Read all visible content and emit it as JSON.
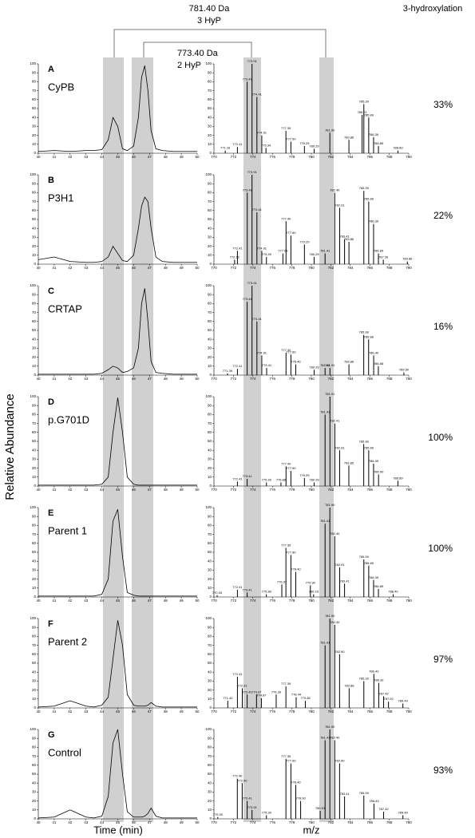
{
  "figure": {
    "title_right": "3-hydroxylation",
    "ylabel": "Relative Abundance",
    "xlabel_time": "Time (min)",
    "xlabel_mz": "m/z",
    "brackets": [
      {
        "mass": "781.40 Da",
        "label": "3 HyP"
      },
      {
        "mass": "773.40 Da",
        "label": "2 HyP"
      }
    ]
  },
  "panels": [
    {
      "letter": "A",
      "name": "CyPB",
      "percent": "33%"
    },
    {
      "letter": "B",
      "name": "P3H1",
      "percent": "22%"
    },
    {
      "letter": "C",
      "name": "CRTAP",
      "percent": "16%"
    },
    {
      "letter": "D",
      "name": "p.G701D",
      "percent": "100%"
    },
    {
      "letter": "E",
      "name": "Parent 1",
      "percent": "100%"
    },
    {
      "letter": "F",
      "name": "Parent 2",
      "percent": "97%"
    },
    {
      "letter": "G",
      "name": "Control",
      "percent": "93%"
    }
  ],
  "chart_data": [
    {
      "type": "line",
      "xlim": [
        40,
        50
      ],
      "xticks": [
        40,
        41,
        42,
        43,
        44,
        45,
        46,
        47,
        48,
        49,
        50
      ],
      "ylim": [
        0,
        100
      ],
      "yticks": [
        0,
        10,
        20,
        30,
        40,
        50,
        60,
        70,
        80,
        90,
        100
      ],
      "x": [
        40,
        41,
        42,
        43,
        43.5,
        44,
        44.4,
        44.7,
        45,
        45.3,
        45.6,
        46,
        46.3,
        46.5,
        46.7,
        46.9,
        47.1,
        47.4,
        47.8,
        48.5,
        49.5,
        50
      ],
      "values": [
        2,
        3,
        2,
        3,
        3,
        4,
        15,
        40,
        30,
        5,
        3,
        8,
        40,
        85,
        98,
        70,
        25,
        5,
        3,
        2,
        2,
        2
      ]
    },
    {
      "type": "stick",
      "xlim": [
        770,
        790
      ],
      "xticks": [
        770,
        772,
        774,
        776,
        778,
        780,
        782,
        784,
        786,
        788,
        790
      ],
      "ylim": [
        0,
        100
      ],
      "yticks": [
        0,
        10,
        20,
        30,
        40,
        50,
        60,
        70,
        80,
        90,
        100
      ],
      "x": [
        771.16,
        772.41,
        773.41,
        773.91,
        774.41,
        774.91,
        775.34,
        777.39,
        777.9,
        779.29,
        780.29,
        781.9,
        783.86,
        785.21,
        785.39,
        785.89,
        786.39,
        786.89,
        788.89
      ],
      "x_labels": [
        "771.16",
        "772.41",
        "773.41",
        "773.91",
        "774.41",
        "774.91",
        "775.34",
        "777.39",
        "777.90",
        "779.29",
        "780.29",
        "781.90",
        "783.86",
        "785.21",
        "785.39",
        "785.89",
        "786.39",
        "786.89",
        "788.89"
      ],
      "values": [
        3,
        7,
        80,
        100,
        63,
        20,
        6,
        25,
        13,
        8,
        5,
        23,
        15,
        43,
        55,
        40,
        18,
        8,
        3
      ]
    },
    {
      "type": "line",
      "xlim": [
        40,
        50
      ],
      "xticks": [
        40,
        41,
        42,
        43,
        44,
        45,
        46,
        47,
        48,
        49,
        50
      ],
      "ylim": [
        0,
        100
      ],
      "yticks": [
        0,
        10,
        20,
        30,
        40,
        50,
        60,
        70,
        80,
        90,
        100
      ],
      "x": [
        40,
        41,
        42,
        43,
        43.5,
        44,
        44.4,
        44.7,
        45,
        45.3,
        45.6,
        46,
        46.3,
        46.5,
        46.7,
        46.9,
        47.1,
        47.4,
        47.8,
        48.5,
        49.5,
        50
      ],
      "values": [
        5,
        8,
        3,
        2,
        2,
        3,
        8,
        20,
        12,
        4,
        3,
        10,
        40,
        65,
        75,
        70,
        40,
        8,
        3,
        2,
        2,
        2
      ]
    },
    {
      "type": "stick",
      "xlim": [
        770,
        790
      ],
      "xticks": [
        770,
        772,
        774,
        776,
        778,
        780,
        782,
        784,
        786,
        788,
        790
      ],
      "ylim": [
        0,
        100
      ],
      "yticks": [
        0,
        10,
        20,
        30,
        40,
        50,
        60,
        70,
        80,
        90,
        100
      ],
      "x": [
        772.12,
        772.41,
        773.42,
        773.91,
        774.41,
        774.91,
        775.39,
        777.08,
        777.4,
        777.9,
        779.29,
        780.29,
        781.41,
        782.4,
        782.91,
        783.41,
        783.86,
        785.39,
        785.89,
        786.39,
        786.89,
        787.39,
        789.86
      ],
      "x_labels": [
        "772.12",
        "772.41",
        "773.42",
        "773.91",
        "774.41",
        "774.91",
        "775.39",
        "777.08",
        "777.40",
        "777.90",
        "779.29",
        "780.29",
        "781.41",
        "782.40",
        "782.91",
        "783.41",
        "783.86",
        "785.39",
        "785.89",
        "786.39",
        "786.89",
        "787.39",
        "789.86"
      ],
      "values": [
        5,
        15,
        80,
        100,
        58,
        15,
        8,
        12,
        48,
        32,
        22,
        8,
        12,
        80,
        63,
        28,
        25,
        82,
        70,
        45,
        12,
        5,
        3
      ]
    },
    {
      "type": "line",
      "xlim": [
        40,
        50
      ],
      "xticks": [
        40,
        41,
        42,
        43,
        44,
        45,
        46,
        47,
        48,
        49,
        50
      ],
      "ylim": [
        0,
        100
      ],
      "yticks": [
        0,
        10,
        20,
        30,
        40,
        50,
        60,
        70,
        80,
        90,
        100
      ],
      "x": [
        40,
        41,
        42,
        43,
        43.5,
        44,
        44.4,
        44.7,
        45,
        45.3,
        45.6,
        46,
        46.3,
        46.5,
        46.7,
        46.9,
        47.1,
        47.4,
        47.8,
        48.5,
        49.5,
        50
      ],
      "values": [
        1,
        1,
        1,
        1,
        1,
        2,
        6,
        10,
        8,
        3,
        4,
        8,
        30,
        80,
        97,
        60,
        15,
        3,
        2,
        1,
        1,
        1
      ]
    },
    {
      "type": "stick",
      "xlim": [
        770,
        790
      ],
      "xticks": [
        770,
        772,
        774,
        776,
        778,
        780,
        782,
        784,
        786,
        788,
        790
      ],
      "ylim": [
        0,
        100
      ],
      "yticks": [
        0,
        10,
        20,
        30,
        40,
        50,
        60,
        70,
        80,
        90,
        100
      ],
      "x": [
        771.39,
        772.41,
        773.41,
        773.91,
        774.41,
        774.91,
        775.41,
        777.4,
        777.9,
        778.4,
        780.29,
        781.41,
        781.91,
        783.86,
        785.38,
        785.88,
        786.4,
        786.88,
        789.5
      ],
      "x_labels": [
        "771.39",
        "772.41",
        "773.41",
        "773.91",
        "774.41",
        "774.91",
        "775.41",
        "777.40",
        "777.90",
        "778.40",
        "780.29",
        "781.41",
        "781.91",
        "783.86",
        "785.38",
        "785.88",
        "786.40",
        "786.88",
        "789.50"
      ],
      "values": [
        2,
        7,
        82,
        100,
        60,
        22,
        8,
        25,
        23,
        12,
        6,
        8,
        8,
        12,
        45,
        40,
        22,
        10,
        3
      ]
    },
    {
      "type": "line",
      "xlim": [
        40,
        50
      ],
      "xticks": [
        40,
        41,
        42,
        43,
        44,
        45,
        46,
        47,
        48,
        49,
        50
      ],
      "ylim": [
        0,
        100
      ],
      "yticks": [
        0,
        10,
        20,
        30,
        40,
        50,
        60,
        70,
        80,
        90,
        100
      ],
      "x": [
        40,
        41,
        42,
        43,
        43.5,
        44,
        44.4,
        44.7,
        45,
        45.3,
        45.6,
        46,
        46.3,
        46.5,
        46.7,
        46.9,
        47.1,
        47.4,
        47.8,
        48.5,
        49.5,
        50
      ],
      "values": [
        1,
        1,
        1,
        1,
        1,
        2,
        10,
        60,
        99,
        60,
        10,
        2,
        1,
        1,
        1,
        1,
        1,
        1,
        1,
        1,
        1,
        1
      ]
    },
    {
      "type": "stick",
      "xlim": [
        770,
        790
      ],
      "xticks": [
        770,
        772,
        774,
        776,
        778,
        780,
        782,
        784,
        786,
        788,
        790
      ],
      "ylim": [
        0,
        100
      ],
      "yticks": [
        0,
        10,
        20,
        30,
        40,
        50,
        60,
        70,
        80,
        90,
        100
      ],
      "x": [
        772.41,
        773.41,
        775.39,
        776.88,
        777.4,
        777.9,
        779.29,
        780.29,
        781.41,
        781.91,
        782.41,
        782.91,
        783.85,
        785.38,
        785.89,
        786.39,
        786.9,
        788.89
      ],
      "x_labels": [
        "772.41",
        "773.41",
        "775.39",
        "776.88",
        "777.40",
        "777.90",
        "779.29",
        "780.29",
        "781.41",
        "781.91",
        "782.41",
        "782.91",
        "783.85",
        "785.38",
        "785.89",
        "786.39",
        "786.90",
        "788.89"
      ],
      "values": [
        5,
        8,
        4,
        4,
        22,
        17,
        9,
        4,
        80,
        100,
        70,
        40,
        23,
        47,
        40,
        25,
        13,
        6
      ]
    },
    {
      "type": "line",
      "xlim": [
        40,
        50
      ],
      "xticks": [
        40,
        41,
        42,
        43,
        44,
        45,
        46,
        47,
        48,
        49,
        50
      ],
      "ylim": [
        0,
        100
      ],
      "yticks": [
        0,
        10,
        20,
        30,
        40,
        50,
        60,
        70,
        80,
        90,
        100
      ],
      "x": [
        40,
        41,
        42,
        43,
        43.5,
        44,
        44.4,
        44.7,
        45,
        45.3,
        45.6,
        46,
        46.3,
        46.5,
        46.7,
        46.9,
        47.1,
        47.4,
        47.8,
        48.5,
        49.5,
        50
      ],
      "values": [
        1,
        1,
        1,
        1,
        1,
        3,
        20,
        85,
        98,
        45,
        5,
        2,
        1,
        1,
        1,
        1,
        1,
        1,
        1,
        1,
        1,
        1
      ]
    },
    {
      "type": "stick",
      "xlim": [
        770,
        790
      ],
      "xticks": [
        770,
        772,
        774,
        776,
        778,
        780,
        782,
        784,
        786,
        788,
        790
      ],
      "ylim": [
        0,
        100
      ],
      "yticks": [
        0,
        10,
        20,
        30,
        40,
        50,
        60,
        70,
        80,
        90,
        100
      ],
      "x": [
        770.33,
        772.41,
        773.41,
        775.38,
        776.97,
        777.39,
        777.9,
        778.4,
        779.9,
        780.23,
        781.41,
        781.9,
        782.4,
        782.91,
        783.41,
        785.39,
        785.89,
        786.39,
        786.89,
        788.4
      ],
      "x_labels": [
        "770.33",
        "772.41",
        "773.41",
        "775.38",
        "776.97",
        "777.39",
        "777.90",
        "778.40",
        "779.90",
        "780.23",
        "781.41",
        "781.90",
        "782.40",
        "782.91",
        "783.41",
        "785.39",
        "785.89",
        "786.39",
        "786.89",
        "788.40"
      ],
      "values": [
        2,
        8,
        5,
        3,
        14,
        55,
        47,
        28,
        13,
        3,
        82,
        100,
        68,
        33,
        15,
        42,
        35,
        19,
        9,
        3
      ]
    },
    {
      "type": "line",
      "xlim": [
        40,
        50
      ],
      "xticks": [
        40,
        41,
        42,
        43,
        44,
        45,
        46,
        47,
        48,
        49,
        50
      ],
      "ylim": [
        0,
        100
      ],
      "yticks": [
        0,
        10,
        20,
        30,
        40,
        50,
        60,
        70,
        80,
        90,
        100
      ],
      "x": [
        40,
        41,
        42,
        43,
        43.5,
        44,
        44.4,
        44.7,
        45,
        45.3,
        45.6,
        46,
        46.3,
        46.5,
        46.7,
        46.9,
        47.1,
        47.4,
        47.8,
        48.5,
        49.5,
        50
      ],
      "values": [
        1,
        2,
        8,
        2,
        1,
        3,
        12,
        55,
        98,
        70,
        15,
        3,
        2,
        2,
        2,
        3,
        6,
        2,
        1,
        1,
        1,
        1
      ]
    },
    {
      "type": "stick",
      "xlim": [
        770,
        790
      ],
      "xticks": [
        770,
        772,
        774,
        776,
        778,
        780,
        782,
        784,
        786,
        788,
        790
      ],
      "ylim": [
        0,
        100
      ],
      "yticks": [
        0,
        10,
        20,
        30,
        40,
        50,
        60,
        70,
        80,
        90,
        100
      ],
      "x": [
        771.42,
        772.41,
        772.91,
        773.41,
        774.37,
        774.87,
        776.39,
        777.39,
        778.44,
        779.38,
        781.41,
        781.9,
        782.4,
        782.9,
        783.88,
        785.39,
        786.42,
        786.92,
        787.42,
        787.92,
        789.4
      ],
      "x_labels": [
        "771.42",
        "772.41",
        "772.91",
        "773.41",
        "774.37",
        "774.87",
        "776.39",
        "777.39",
        "778.44",
        "779.38",
        "781.41",
        "781.90",
        "782.40",
        "782.90",
        "783.88",
        "785.39",
        "786.42",
        "786.92",
        "787.42",
        "787.92",
        "789.40"
      ],
      "values": [
        8,
        35,
        22,
        15,
        15,
        11,
        15,
        24,
        12,
        8,
        70,
        100,
        93,
        60,
        22,
        30,
        38,
        28,
        13,
        7,
        5
      ]
    },
    {
      "type": "line",
      "xlim": [
        40,
        50
      ],
      "xticks": [
        40,
        41,
        42,
        43,
        44,
        45,
        46,
        47,
        48,
        49,
        50
      ],
      "ylim": [
        0,
        100
      ],
      "yticks": [
        0,
        10,
        20,
        30,
        40,
        50,
        60,
        70,
        80,
        90,
        100
      ],
      "x": [
        40,
        41,
        42,
        43,
        43.5,
        44,
        44.4,
        44.7,
        45,
        45.3,
        45.6,
        46,
        46.3,
        46.5,
        46.7,
        46.9,
        47.1,
        47.4,
        47.8,
        48.5,
        49.5,
        50
      ],
      "values": [
        1,
        2,
        10,
        2,
        1,
        3,
        25,
        85,
        100,
        50,
        8,
        2,
        2,
        2,
        3,
        6,
        12,
        3,
        1,
        1,
        1,
        1
      ]
    },
    {
      "type": "stick",
      "xlim": [
        770,
        790
      ],
      "xticks": [
        770,
        772,
        774,
        776,
        778,
        780,
        782,
        784,
        786,
        788,
        790
      ],
      "ylim": [
        0,
        100
      ],
      "yticks": [
        0,
        10,
        20,
        30,
        40,
        50,
        60,
        70,
        80,
        90,
        100
      ],
      "x": [
        770.39,
        772.4,
        772.9,
        773.41,
        773.91,
        775.39,
        777.39,
        777.9,
        778.4,
        778.9,
        780.91,
        781.41,
        781.9,
        782.4,
        782.9,
        783.41,
        785.39,
        786.43,
        787.42,
        789.4
      ],
      "x_labels": [
        "770.39",
        "772.40",
        "772.90",
        "773.41",
        "773.91",
        "775.39",
        "777.39",
        "777.90",
        "778.40",
        "778.90",
        "780.91",
        "781.41",
        "781.90",
        "782.40",
        "782.90",
        "783.41",
        "785.39",
        "786.43",
        "787.42",
        "789.40"
      ],
      "values": [
        2,
        45,
        40,
        20,
        10,
        4,
        67,
        62,
        38,
        20,
        9,
        88,
        100,
        88,
        62,
        25,
        26,
        17,
        8,
        4
      ]
    }
  ]
}
